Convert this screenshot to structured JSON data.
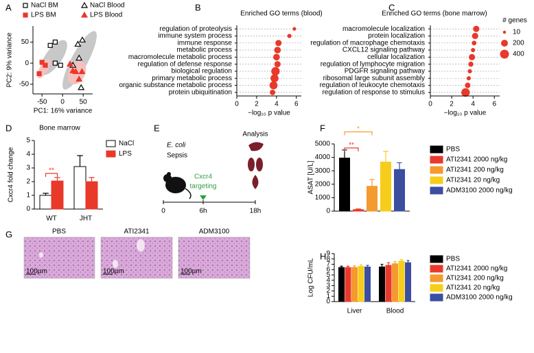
{
  "panel_labels": [
    "A",
    "B",
    "C",
    "D",
    "E",
    "F",
    "G",
    "H"
  ],
  "timeline": {
    "organism": "E. coli",
    "condition": "Sepsis",
    "treatment": [
      "Cxcr4",
      "targeting"
    ],
    "readout": "Analysis",
    "time_labels": [
      "0",
      "6h",
      "18h"
    ]
  },
  "histology": {
    "labels": [
      "PBS",
      "ATI2341",
      "ADM3100"
    ],
    "scale_bar": "100µm"
  },
  "chart_data": [
    {
      "type": "scatter",
      "xlabel": "PC1: 16% variance",
      "ylabel": "PC2: 9% variance",
      "xlim": [
        -72,
        73
      ],
      "ylim": [
        -73,
        88
      ],
      "xticks": [
        -50,
        0,
        50
      ],
      "yticks": [
        -50,
        0,
        50
      ],
      "series": [
        {
          "name": "NaCl BM",
          "color": "#000000",
          "marker": "square-open",
          "x": [
            -30,
            -18,
            -18,
            -5
          ],
          "y": [
            42,
            50,
            0,
            -5
          ]
        },
        {
          "name": "LPS BM",
          "color": "#e8392b",
          "marker": "square",
          "x": [
            -50,
            -57,
            -42
          ],
          "y": [
            2,
            -25,
            -5
          ]
        },
        {
          "name": "NaCl Blood",
          "color": "#000000",
          "marker": "triangle-open",
          "x": [
            37,
            48,
            40,
            25,
            45
          ],
          "y": [
            45,
            55,
            12,
            -5,
            -58
          ]
        },
        {
          "name": "LPS Blood",
          "color": "#e8392b",
          "marker": "triangle",
          "x": [
            18,
            32,
            47,
            40,
            25
          ],
          "y": [
            -2,
            -20,
            -20,
            -38,
            -18
          ]
        }
      ]
    },
    {
      "type": "dot",
      "title": "Enriched GO terms (blood)",
      "xlabel": "−log₁₀ p value",
      "color": "#e8392b",
      "xlim": [
        0,
        6.5
      ],
      "xticks": [
        0,
        2,
        4,
        6
      ],
      "categories": [
        "regulation of proteolysis",
        "immune system process",
        "immune response",
        "metabolic process",
        "macromolecule metabolic process",
        "regulation of defense response",
        "biological regulation",
        "primary metabolic process",
        "organic substance metabolic process",
        "protein ubiquitination"
      ],
      "values": [
        5.8,
        5.3,
        4.2,
        4.1,
        4.0,
        4.1,
        3.9,
        3.8,
        3.7,
        3.6
      ],
      "sizes": [
        20,
        40,
        150,
        180,
        180,
        150,
        350,
        300,
        300,
        100
      ]
    },
    {
      "type": "dot",
      "title": "Enriched GO terms (bone marrow)",
      "xlabel": "−log₁₀ p value",
      "color": "#e8392b",
      "xlim": [
        0,
        6.5
      ],
      "xticks": [
        0,
        2,
        4,
        6
      ],
      "categories": [
        "macromolecule localization",
        "protein localization",
        "regulation of macrophage chemotaxis",
        "CXCL12 signaling pathway",
        "cellular localization",
        "regulation of lymphocyte migration",
        "PDGFR signaling pathway",
        "ribosomal large subunit assembly",
        "regulation of leukocyte chemotaxis",
        "regulation of response to stimulus"
      ],
      "values": [
        4.3,
        4.2,
        4.1,
        4.0,
        3.9,
        3.8,
        3.7,
        3.6,
        3.5,
        3.3
      ],
      "sizes": [
        150,
        150,
        60,
        40,
        150,
        80,
        40,
        40,
        100,
        350
      ],
      "size_legend": {
        "title": "# genes",
        "values": [
          10,
          200,
          400
        ]
      }
    },
    {
      "type": "bar",
      "title": "Bone marrow",
      "ylabel": "Cxcr4 fold change",
      "legend": "top-right",
      "ylim": [
        0,
        5
      ],
      "yticks": [
        0,
        1,
        2,
        3,
        4,
        5
      ],
      "categories": [
        "WT",
        "JHT"
      ],
      "series": [
        {
          "name": "NaCl",
          "color": "#ffffff",
          "values": [
            1.0,
            3.1
          ],
          "errors": [
            0.15,
            0.8
          ]
        },
        {
          "name": "LPS",
          "color": "#e8392b",
          "values": [
            2.05,
            2.0
          ],
          "errors": [
            0.25,
            0.3
          ]
        }
      ],
      "annotations": [
        {
          "text": "**",
          "color": "#e8392b"
        }
      ]
    },
    {
      "type": "bar",
      "ylabel": "ASAT [U/L]",
      "legend": "right",
      "ylim": [
        0,
        5000
      ],
      "yticks": [
        0,
        1000,
        2000,
        3000,
        4000,
        5000
      ],
      "categories": [
        null
      ],
      "series": [
        {
          "name": "PBS",
          "color": "#000000",
          "values": [
            3950
          ],
          "errors": [
            600
          ]
        },
        {
          "name": "ATI2341 2000 ng/kg",
          "color": "#e8392b",
          "values": [
            110
          ],
          "errors": [
            50
          ]
        },
        {
          "name": "ATI2341 200 ng/kg",
          "color": "#f59a2f",
          "values": [
            1850
          ],
          "errors": [
            500
          ]
        },
        {
          "name": "ATI2341 20 ng/kg",
          "color": "#f7cd1c",
          "values": [
            3650
          ],
          "errors": [
            800
          ]
        },
        {
          "name": "ADM3100 2000 ng/kg",
          "color": "#3b4ea0",
          "values": [
            3100
          ],
          "errors": [
            500
          ]
        }
      ],
      "annotations": [
        {
          "text": "**",
          "color": "#e8392b"
        },
        {
          "text": "*",
          "color": "#f59a2f"
        }
      ]
    },
    {
      "type": "bar",
      "ylabel": "Log CFU/mL",
      "legend": "right",
      "ylim": [
        0,
        9
      ],
      "yticks": [
        0,
        1,
        2,
        3,
        4,
        5,
        6,
        7,
        8,
        9
      ],
      "categories": [
        "Liver",
        "Blood"
      ],
      "series": [
        {
          "name": "PBS",
          "color": "#000000",
          "values": [
            6.4,
            6.5
          ],
          "errors": [
            0.25,
            0.5
          ]
        },
        {
          "name": "ATI2341 2000 ng/kg",
          "color": "#e8392b",
          "values": [
            6.4,
            6.8
          ],
          "errors": [
            0.25,
            0.5
          ]
        },
        {
          "name": "ATI2341 200 ng/kg",
          "color": "#f59a2f",
          "values": [
            6.4,
            7.1
          ],
          "errors": [
            0.3,
            0.4
          ]
        },
        {
          "name": "ATI2341 20 ng/kg",
          "color": "#f7cd1c",
          "values": [
            6.6,
            7.6
          ],
          "errors": [
            0.3,
            0.3
          ]
        },
        {
          "name": "ADM3100 2000 ng/kg",
          "color": "#3b4ea0",
          "values": [
            6.5,
            7.3
          ],
          "errors": [
            0.3,
            0.4
          ]
        }
      ]
    }
  ]
}
